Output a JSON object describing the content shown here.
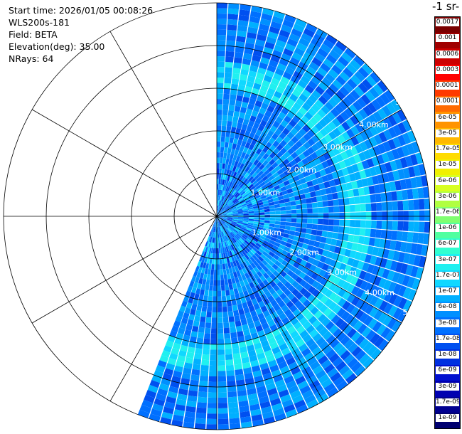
{
  "info": {
    "start_time": "Start time: 2026/01/05 00:08:26",
    "instrument": "WLS200s-181",
    "field": "Field: BETA",
    "elevation": "Elevation(deg): 35.00",
    "nrays": "NRays: 64"
  },
  "colorbar": {
    "title": "-1 sr-",
    "labels": [
      "0.0017",
      "0.001",
      "0.0006",
      "0.0003",
      "0.00017",
      "0.0001",
      "6e-05",
      "3e-05",
      "1.7e-05",
      "1e-05",
      "6e-06",
      "3e-06",
      "1.7e-06",
      "1e-06",
      "6e-07",
      "3e-07",
      "1.7e-07",
      "1e-07",
      "6e-08",
      "3e-08",
      "1.7e-08",
      "1e-08",
      "6e-09",
      "3e-09",
      "1.7e-09",
      "1e-09"
    ],
    "colors": [
      "#7a0000",
      "#a00000",
      "#cc0000",
      "#ff0000",
      "#ff3a00",
      "#ff6a00",
      "#ff9400",
      "#ffb800",
      "#ffdc00",
      "#f0f000",
      "#d8ff20",
      "#b0ff40",
      "#80ff70",
      "#50ffa0",
      "#30ffd0",
      "#20f0f0",
      "#10d8ff",
      "#00b0ff",
      "#0090ff",
      "#0070ff",
      "#0050f0",
      "#0030e0",
      "#0010d0",
      "#0000b0",
      "#000090",
      "#000070"
    ]
  },
  "chart_data": {
    "type": "heatmap",
    "projection": "polar-ppi",
    "field": "BETA",
    "elevation_deg": 35.0,
    "n_rays": 64,
    "azimuth_range_deg": [
      0,
      202
    ],
    "range_labels": [
      "1.00km",
      "2.00km",
      "3.00km",
      "4.00km",
      "5.00km"
    ],
    "range_unit": "km",
    "max_range_km": 5.0,
    "value_range": [
      1e-09,
      0.0017
    ],
    "scale": "log",
    "typical_value": 6e-08,
    "enhanced_band_km": [
      3.0,
      3.6
    ],
    "enhanced_band_value": 1.7e-07
  }
}
